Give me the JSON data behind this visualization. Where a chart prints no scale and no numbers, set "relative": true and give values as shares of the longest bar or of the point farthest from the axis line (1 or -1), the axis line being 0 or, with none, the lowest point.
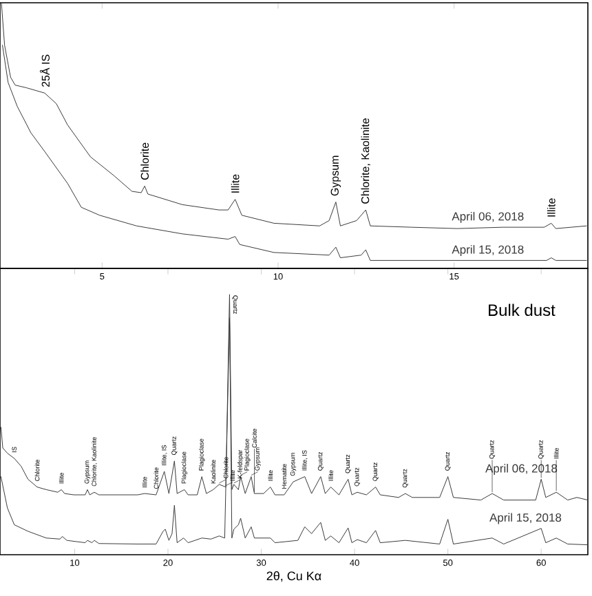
{
  "chart_data": [
    {
      "type": "line",
      "relative": true,
      "xlim": [
        2.1,
        18.8
      ],
      "xticks": [
        5,
        10,
        15
      ],
      "series": [
        {
          "name": "April 06, 2018",
          "color": "#3a3a3a",
          "x": [
            2.14,
            2.23,
            2.4,
            2.53,
            2.85,
            3.37,
            3.7,
            4.02,
            4.67,
            5.33,
            5.85,
            6.11,
            6.21,
            6.3,
            7.28,
            8.32,
            8.58,
            8.78,
            8.97,
            9.88,
            11.18,
            11.45,
            11.64,
            11.77,
            12.23,
            12.49,
            12.62,
            13.79,
            15.09,
            16.39,
            17.56,
            17.76,
            17.89,
            18.76
          ],
          "values": [
            1.0,
            0.84,
            0.72,
            0.69,
            0.68,
            0.66,
            0.62,
            0.54,
            0.42,
            0.35,
            0.29,
            0.285,
            0.31,
            0.28,
            0.24,
            0.22,
            0.22,
            0.26,
            0.2,
            0.17,
            0.16,
            0.18,
            0.25,
            0.16,
            0.18,
            0.22,
            0.16,
            0.155,
            0.15,
            0.155,
            0.155,
            0.17,
            0.15,
            0.16
          ]
        },
        {
          "name": "April 15, 2018",
          "color": "#3a3a3a",
          "x": [
            2.17,
            2.33,
            2.59,
            2.98,
            3.37,
            4.02,
            4.41,
            4.93,
            5.98,
            7.28,
            8.58,
            8.78,
            8.91,
            9.88,
            11.45,
            11.64,
            11.77,
            12.36,
            12.49,
            12.62,
            13.79,
            15.09,
            16.39,
            17.63,
            17.76,
            17.89,
            18.76
          ],
          "values": [
            0.84,
            0.7,
            0.61,
            0.51,
            0.44,
            0.32,
            0.23,
            0.2,
            0.16,
            0.13,
            0.11,
            0.12,
            0.09,
            0.06,
            0.05,
            0.08,
            0.04,
            0.05,
            0.07,
            0.03,
            0.03,
            0.03,
            0.03,
            0.03,
            0.04,
            0.03,
            0.03
          ]
        }
      ],
      "annotations": [
        {
          "text": "25Å  IS",
          "x": 3.37,
          "y": 0.66
        },
        {
          "text": "Chlorite",
          "x": 6.21,
          "y": 0.31
        },
        {
          "text": "Illite",
          "x": 8.78,
          "y": 0.26
        },
        {
          "text": "Gypsum",
          "x": 11.64,
          "y": 0.25
        },
        {
          "text": "Chlorite, Kaolinite",
          "x": 12.49,
          "y": 0.22
        },
        {
          "text": "Illite",
          "x": 17.76,
          "y": 0.17
        }
      ]
    },
    {
      "type": "line",
      "relative": true,
      "title": "Bulk dust",
      "xlabel": "2θ, Cu Kα",
      "xlim": [
        2,
        65
      ],
      "xticks": [
        10,
        20,
        30,
        40,
        50,
        60
      ],
      "series": [
        {
          "name": "April 06, 2018",
          "color": "#3a3a3a",
          "x": [
            2.1,
            2.3,
            2.79,
            3.53,
            4.26,
            5.0,
            5.98,
            6.96,
            8.19,
            8.58,
            8.92,
            9.9,
            11.13,
            11.37,
            11.62,
            12.11,
            12.6,
            16.76,
            17.5,
            18.73,
            19.61,
            20.1,
            20.69,
            20.98,
            21.76,
            22.16,
            23.14,
            23.63,
            24.12,
            24.85,
            25.49,
            26.2,
            26.6,
            26.85,
            27.06,
            27.55,
            27.79,
            28.28,
            28.92,
            29.26,
            30.25,
            30.98,
            31.47,
            32.45,
            33.43,
            34.66,
            35.39,
            36.37,
            36.86,
            37.45,
            38.33,
            39.31,
            39.71,
            40.29,
            41.27,
            42.25,
            42.75,
            44.71,
            45.44,
            46.18,
            49.12,
            50.0,
            50.59,
            53.53,
            54.75,
            55.98,
            59.41,
            60.0,
            60.49,
            61.62,
            62.84,
            63.82,
            65.0
          ],
          "values": [
            0.49,
            0.41,
            0.39,
            0.37,
            0.34,
            0.29,
            0.26,
            0.25,
            0.24,
            0.25,
            0.235,
            0.23,
            0.23,
            0.25,
            0.23,
            0.24,
            0.23,
            0.23,
            0.235,
            0.23,
            0.32,
            0.235,
            0.36,
            0.235,
            0.25,
            0.23,
            0.23,
            0.3,
            0.235,
            0.25,
            0.27,
            0.26,
            1.0,
            0.25,
            0.27,
            0.25,
            0.3,
            0.235,
            0.3,
            0.235,
            0.235,
            0.26,
            0.23,
            0.23,
            0.28,
            0.3,
            0.235,
            0.3,
            0.235,
            0.26,
            0.23,
            0.29,
            0.23,
            0.24,
            0.23,
            0.26,
            0.23,
            0.22,
            0.235,
            0.22,
            0.22,
            0.3,
            0.22,
            0.21,
            0.235,
            0.21,
            0.21,
            0.29,
            0.22,
            0.24,
            0.21,
            0.22,
            0.21
          ]
        },
        {
          "name": "April 15, 2018",
          "color": "#3a3a3a",
          "x": [
            2.1,
            2.79,
            3.53,
            5.0,
            6.96,
            8.43,
            8.68,
            9.17,
            11.13,
            11.37,
            11.86,
            12.11,
            12.6,
            16.76,
            18.73,
            19.46,
            19.71,
            20.1,
            20.44,
            20.69,
            20.98,
            21.67,
            22.16,
            23.63,
            24.61,
            25.49,
            26.08,
            26.6,
            26.85,
            27.06,
            27.55,
            27.79,
            28.28,
            28.92,
            29.26,
            30.98,
            31.47,
            33.92,
            34.66,
            35.39,
            36.37,
            36.86,
            37.45,
            38.33,
            39.31,
            39.71,
            40.29,
            41.27,
            42.25,
            42.75,
            45.44,
            49.12,
            50.0,
            50.59,
            54.75,
            55.98,
            60.0,
            60.49,
            61.62,
            62.84,
            65.0
          ],
          "values": [
            0.3,
            0.18,
            0.115,
            0.09,
            0.064,
            0.06,
            0.07,
            0.055,
            0.046,
            0.055,
            0.046,
            0.055,
            0.043,
            0.041,
            0.041,
            0.089,
            0.098,
            0.055,
            0.081,
            0.19,
            0.046,
            0.064,
            0.046,
            0.064,
            0.06,
            0.072,
            0.064,
            0.91,
            0.064,
            0.098,
            0.115,
            0.14,
            0.064,
            0.107,
            0.064,
            0.064,
            0.046,
            0.055,
            0.107,
            0.081,
            0.124,
            0.055,
            0.072,
            0.046,
            0.103,
            0.046,
            0.058,
            0.046,
            0.093,
            0.046,
            0.055,
            0.041,
            0.136,
            0.041,
            0.064,
            0.041,
            0.101,
            0.046,
            0.064,
            0.041,
            0.038
          ]
        }
      ],
      "annotations": [
        {
          "text": "IS",
          "x": 3.53,
          "y": 0.37
        },
        {
          "text": "Chlorite",
          "x": 5.98,
          "y": 0.26
        },
        {
          "text": "Illite",
          "x": 8.58,
          "y": 0.25
        },
        {
          "text": "Gypsum",
          "x": 11.37,
          "y": 0.25
        },
        {
          "text": "Chlorite, Kaolinite",
          "x": 12.11,
          "y": 0.24
        },
        {
          "text": "Illite",
          "x": 17.5,
          "y": 0.235
        },
        {
          "text": "Chlorite",
          "x": 18.73,
          "y": 0.23
        },
        {
          "text": "Illite, IS",
          "x": 19.61,
          "y": 0.32
        },
        {
          "text": "Quartz",
          "x": 20.69,
          "y": 0.36
        },
        {
          "text": "Plagioclase",
          "x": 21.76,
          "y": 0.25
        },
        {
          "text": "Plagioclase",
          "x": 23.63,
          "y": 0.3
        },
        {
          "text": "Kaolinite",
          "x": 24.85,
          "y": 0.25
        },
        {
          "text": "Chlorite",
          "x": 25.49,
          "y": 0.27
        },
        {
          "text": "Illite",
          "x": 26.2,
          "y": 0.26
        },
        {
          "text": "Quartz",
          "x": 26.6,
          "y": 1.0
        },
        {
          "text": "K-feldspar",
          "x": 27.06,
          "y": 0.27
        },
        {
          "text": "Plagioclase",
          "x": 27.79,
          "y": 0.3
        },
        {
          "text": "Gypsum",
          "x": 28.92,
          "y": 0.3
        },
        {
          "text": "Calcite",
          "x": 29.26,
          "y": 0.235
        },
        {
          "text": "Illite",
          "x": 30.98,
          "y": 0.26
        },
        {
          "text": "Hematite",
          "x": 32.45,
          "y": 0.23
        },
        {
          "text": "Gypsum",
          "x": 33.43,
          "y": 0.28
        },
        {
          "text": "Illite, IS",
          "x": 34.66,
          "y": 0.3
        },
        {
          "text": "Quartz",
          "x": 36.37,
          "y": 0.3
        },
        {
          "text": "Illite",
          "x": 37.45,
          "y": 0.26
        },
        {
          "text": "Quartz",
          "x": 39.31,
          "y": 0.29
        },
        {
          "text": "Quartz",
          "x": 40.29,
          "y": 0.24
        },
        {
          "text": "Quartz",
          "x": 42.25,
          "y": 0.26
        },
        {
          "text": "Quartz",
          "x": 45.44,
          "y": 0.235
        },
        {
          "text": "Quartz",
          "x": 50.0,
          "y": 0.3
        },
        {
          "text": "Quartz",
          "x": 54.75,
          "y": 0.235
        },
        {
          "text": "Quartz",
          "x": 60.0,
          "y": 0.29
        },
        {
          "text": "Illite",
          "x": 61.62,
          "y": 0.24
        }
      ]
    }
  ]
}
